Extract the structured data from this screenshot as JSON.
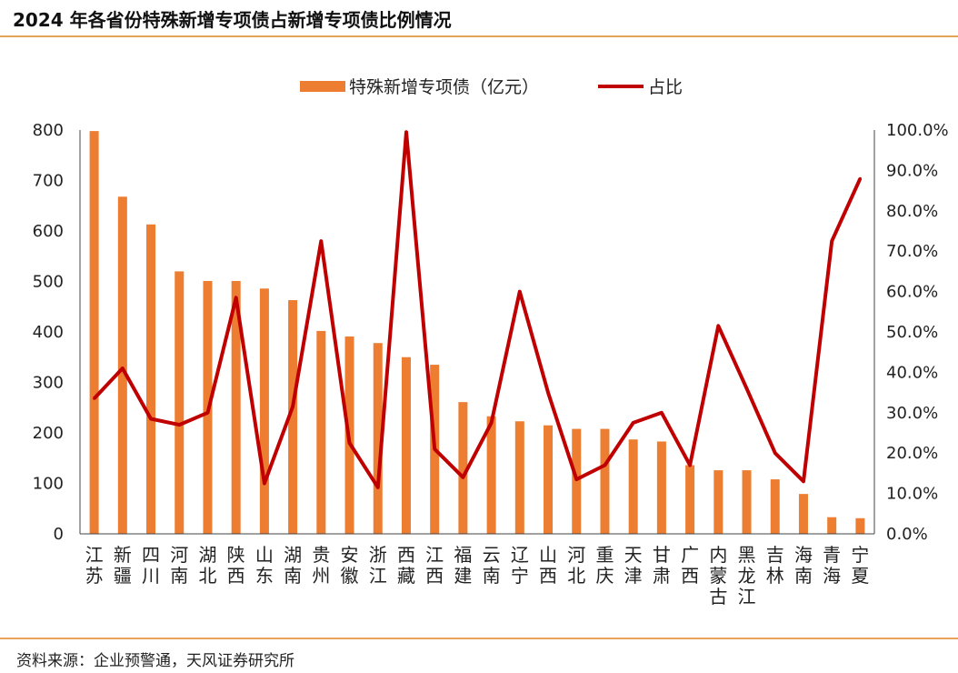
{
  "header": {
    "title": "2024 年各省份特殊新增专项债占新增专项债比例情况"
  },
  "footer": {
    "source": "资料来源：企业预警通，天风证券研究所"
  },
  "colors": {
    "bar": "#ED7D31",
    "line": "#C00000",
    "rule": "#E8A35B"
  },
  "chart_data": {
    "type": "bar",
    "legend_position": "top-center",
    "grid": false,
    "categories": [
      "江苏",
      "新疆",
      "四川",
      "河南",
      "湖北",
      "陕西",
      "山东",
      "湖南",
      "贵州",
      "安徽",
      "浙江",
      "西藏",
      "江西",
      "福建",
      "云南",
      "辽宁",
      "山西",
      "河北",
      "重庆",
      "天津",
      "甘肃",
      "广西",
      "内蒙古",
      "黑龙江",
      "吉林",
      "海南",
      "青海",
      "宁夏"
    ],
    "series": [
      {
        "name": "特殊新增专项债（亿元）",
        "type": "bar",
        "axis": "left",
        "values": [
          798,
          668,
          613,
          520,
          501,
          501,
          486,
          463,
          402,
          391,
          378,
          350,
          335,
          261,
          233,
          223,
          215,
          208,
          208,
          187,
          183,
          136,
          126,
          126,
          108,
          79,
          33,
          31
        ]
      },
      {
        "name": "占比",
        "type": "line",
        "axis": "right",
        "values": [
          33.5,
          41,
          28.5,
          27,
          30,
          58.5,
          12.5,
          31.5,
          72.5,
          22.5,
          11.5,
          99.5,
          21,
          14,
          27.5,
          60,
          35,
          13.5,
          17,
          27.5,
          30,
          17,
          51.5,
          36,
          20,
          13,
          72.5,
          88
        ]
      }
    ],
    "y_left": {
      "ylim": [
        0,
        800
      ],
      "ticks": [
        "0",
        "100",
        "200",
        "300",
        "400",
        "500",
        "600",
        "700",
        "800"
      ]
    },
    "y_right": {
      "ylim": [
        0,
        100
      ],
      "ticks": [
        "0.0%",
        "10.0%",
        "20.0%",
        "30.0%",
        "40.0%",
        "50.0%",
        "60.0%",
        "70.0%",
        "80.0%",
        "90.0%",
        "100.0%"
      ]
    }
  }
}
